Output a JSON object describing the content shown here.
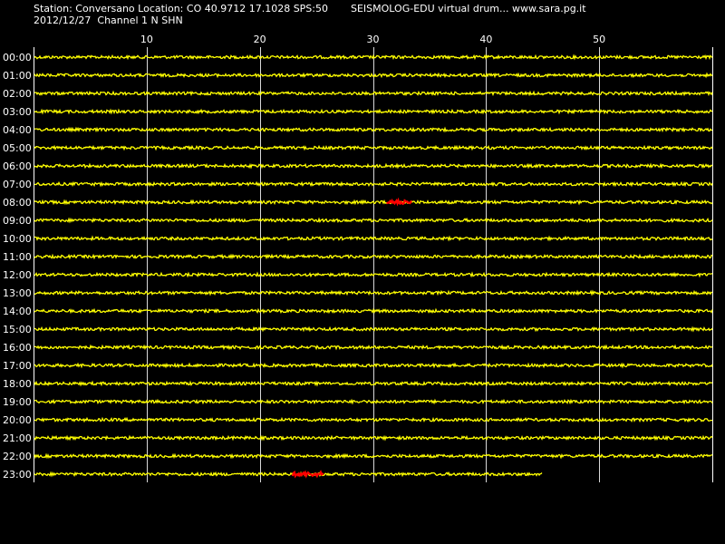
{
  "header": {
    "station_line": "Station: Conversano Location: CO 40.9712 17.1028 SPS:50",
    "app_line": "SEISMOLOG-EDU virtual drum... www.sara.pg.it",
    "date_line": "2012/12/27  Channel 1 N SHN"
  },
  "chart_data": {
    "type": "line",
    "title": "",
    "x_ticks": [
      "10",
      "20",
      "30",
      "40",
      "50"
    ],
    "x_tick_values": [
      10,
      20,
      30,
      40,
      50
    ],
    "xlim": [
      0,
      60
    ],
    "grid": true,
    "rows": [
      "00:00",
      "01:00",
      "02:00",
      "03:00",
      "04:00",
      "05:00",
      "06:00",
      "07:00",
      "08:00",
      "09:00",
      "10:00",
      "11:00",
      "12:00",
      "13:00",
      "14:00",
      "15:00",
      "16:00",
      "17:00",
      "18:00",
      "19:00",
      "20:00",
      "21:00",
      "22:00",
      "23:00"
    ],
    "last_row_end_minute": 45,
    "events": [
      {
        "row": "08:00",
        "start_minute": 31.2,
        "end_minute": 33.5
      },
      {
        "row": "23:00",
        "start_minute": 22.9,
        "end_minute": 25.7
      }
    ],
    "colors": {
      "background": "#000000",
      "trace": "#ffff00",
      "event": "#ff0000",
      "grid": "#ffffff",
      "text": "#ffffff"
    }
  }
}
